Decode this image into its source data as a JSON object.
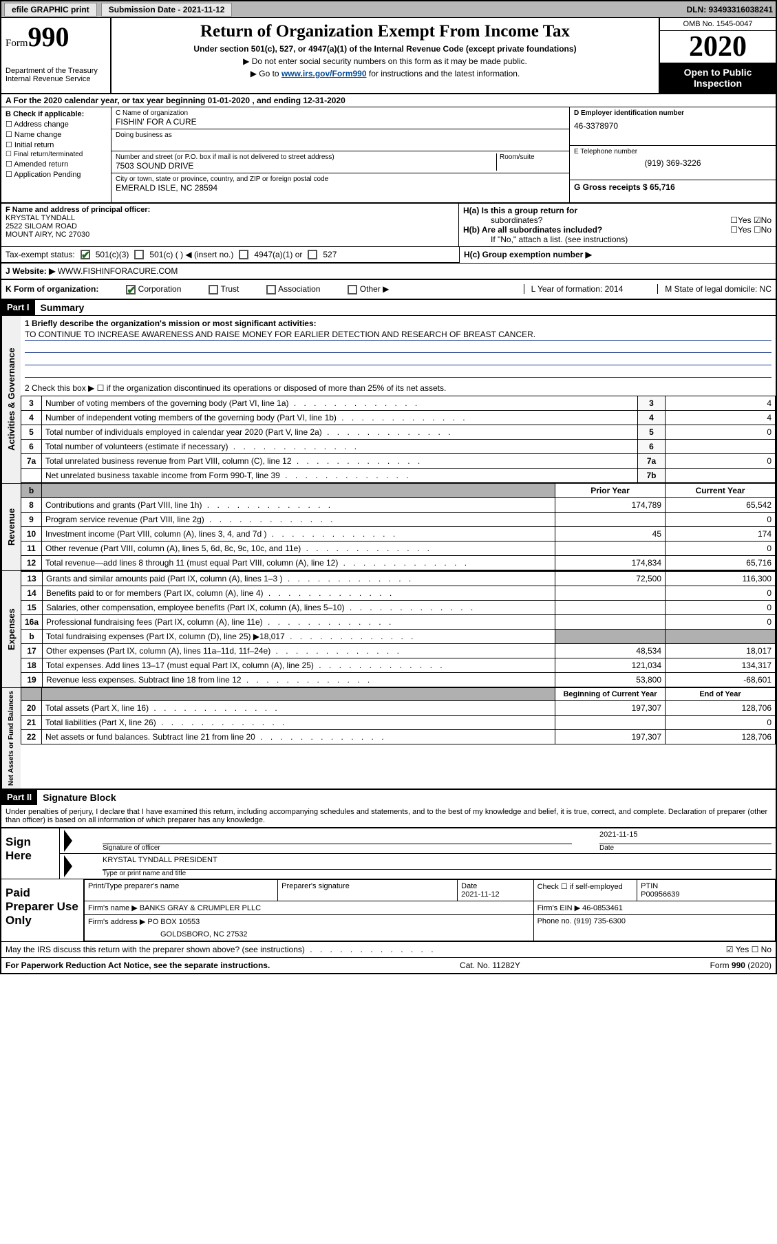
{
  "topbar": {
    "efile": "efile GRAPHIC print",
    "subdate_lbl": "Submission Date - 2021-11-12",
    "dln_lbl": "DLN: 93493316038241"
  },
  "header": {
    "form_word": "Form",
    "form_num": "990",
    "dept": "Department of the Treasury\nInternal Revenue Service",
    "title": "Return of Organization Exempt From Income Tax",
    "sub": "Under section 501(c), 527, or 4947(a)(1) of the Internal Revenue Code (except private foundations)",
    "note1": "▶ Do not enter social security numbers on this form as it may be made public.",
    "note2_pre": "▶ Go to ",
    "note2_link": "www.irs.gov/Form990",
    "note2_post": " for instructions and the latest information.",
    "omb": "OMB No. 1545-0047",
    "year": "2020",
    "open": "Open to Public Inspection"
  },
  "rowA": {
    "text": "A  For the 2020 calendar year, or tax year beginning 01-01-2020   , and ending 12-31-2020"
  },
  "colB": {
    "lbl": "B Check if applicable:",
    "opts": [
      "☐ Address change",
      "☐ Name change",
      "☐ Initial return",
      "☐ Final return/terminated",
      "☐ Amended return",
      "☐ Application Pending"
    ]
  },
  "colC": {
    "name_lbl": "C Name of organization",
    "name": "FISHIN' FOR A CURE",
    "dba_lbl": "Doing business as",
    "addr_lbl": "Number and street (or P.O. box if mail is not delivered to street address)",
    "room_lbl": "Room/suite",
    "addr": "7503 SOUND DRIVE",
    "city_lbl": "City or town, state or province, country, and ZIP or foreign postal code",
    "city": "EMERALD ISLE, NC  28594"
  },
  "colD": {
    "ein_lbl": "D Employer identification number",
    "ein": "46-3378970",
    "tel_lbl": "E Telephone number",
    "tel": "(919) 369-3226",
    "gross_lbl": "G Gross receipts $ 65,716"
  },
  "rowF": {
    "f_lbl": "F  Name and address of principal officer:",
    "f_name": "KRYSTAL TYNDALL",
    "f_addr1": "2522 SILOAM ROAD",
    "f_addr2": "MOUNT AIRY, NC  27030",
    "ha_lbl": "H(a)  Is this a group return for",
    "ha_lbl2": "subordinates?",
    "ha_yn": "☐Yes  ☑No",
    "hb_lbl": "H(b)  Are all subordinates included?",
    "hb_yn": "☐Yes  ☐No",
    "hb_note": "If \"No,\" attach a list. (see instructions)",
    "hc_lbl": "H(c)  Group exemption number ▶"
  },
  "taxStatus": {
    "lbl": "Tax-exempt status:",
    "o1": "501(c)(3)",
    "o2": "501(c) (  ) ◀ (insert no.)",
    "o3": "4947(a)(1) or",
    "o4": "527"
  },
  "rowJ": {
    "lbl": "J   Website: ▶",
    "val": "WWW.FISHINFORACURE.COM"
  },
  "rowK": {
    "lbl": "K Form of organization:",
    "corp": "Corporation",
    "trust": "Trust",
    "assoc": "Association",
    "other": "Other ▶",
    "l_lbl": "L Year of formation: 2014",
    "m_lbl": "M State of legal domicile: NC"
  },
  "part1": {
    "hdr": "Part I",
    "title": "Summary",
    "q1_lbl": "1   Briefly describe the organization's mission or most significant activities:",
    "q1_val": "TO CONTINUE TO INCREASE AWARENESS AND RAISE MONEY FOR EARLIER DETECTION AND RESEARCH OF BREAST CANCER.",
    "q2_lbl": "2   Check this box ▶ ☐  if the organization discontinued its operations or disposed of more than 25% of its net assets."
  },
  "sideLabels": {
    "gov": "Activities & Governance",
    "rev": "Revenue",
    "exp": "Expenses",
    "net": "Net Assets or Fund Balances"
  },
  "govLines": [
    {
      "n": "3",
      "t": "Number of voting members of the governing body (Part VI, line 1a)",
      "ln": "3",
      "v": "4"
    },
    {
      "n": "4",
      "t": "Number of independent voting members of the governing body (Part VI, line 1b)",
      "ln": "4",
      "v": "4"
    },
    {
      "n": "5",
      "t": "Total number of individuals employed in calendar year 2020 (Part V, line 2a)",
      "ln": "5",
      "v": "0"
    },
    {
      "n": "6",
      "t": "Total number of volunteers (estimate if necessary)",
      "ln": "6",
      "v": ""
    },
    {
      "n": "7a",
      "t": "Total unrelated business revenue from Part VIII, column (C), line 12",
      "ln": "7a",
      "v": "0"
    },
    {
      "n": "",
      "t": "Net unrelated business taxable income from Form 990-T, line 39",
      "ln": "7b",
      "v": ""
    }
  ],
  "yearHdrs": {
    "prior": "Prior Year",
    "current": "Current Year"
  },
  "revLines": [
    {
      "n": "8",
      "t": "Contributions and grants (Part VIII, line 1h)",
      "p": "174,789",
      "c": "65,542"
    },
    {
      "n": "9",
      "t": "Program service revenue (Part VIII, line 2g)",
      "p": "",
      "c": "0"
    },
    {
      "n": "10",
      "t": "Investment income (Part VIII, column (A), lines 3, 4, and 7d )",
      "p": "45",
      "c": "174"
    },
    {
      "n": "11",
      "t": "Other revenue (Part VIII, column (A), lines 5, 6d, 8c, 9c, 10c, and 11e)",
      "p": "",
      "c": "0"
    },
    {
      "n": "12",
      "t": "Total revenue—add lines 8 through 11 (must equal Part VIII, column (A), line 12)",
      "p": "174,834",
      "c": "65,716"
    }
  ],
  "expLines": [
    {
      "n": "13",
      "t": "Grants and similar amounts paid (Part IX, column (A), lines 1–3 )",
      "p": "72,500",
      "c": "116,300"
    },
    {
      "n": "14",
      "t": "Benefits paid to or for members (Part IX, column (A), line 4)",
      "p": "",
      "c": "0"
    },
    {
      "n": "15",
      "t": "Salaries, other compensation, employee benefits (Part IX, column (A), lines 5–10)",
      "p": "",
      "c": "0"
    },
    {
      "n": "16a",
      "t": "Professional fundraising fees (Part IX, column (A), line 11e)",
      "p": "",
      "c": "0"
    },
    {
      "n": "b",
      "t": "Total fundraising expenses (Part IX, column (D), line 25) ▶18,017",
      "p": "DARK",
      "c": "DARK"
    },
    {
      "n": "17",
      "t": "Other expenses (Part IX, column (A), lines 11a–11d, 11f–24e)",
      "p": "48,534",
      "c": "18,017"
    },
    {
      "n": "18",
      "t": "Total expenses. Add lines 13–17 (must equal Part IX, column (A), line 25)",
      "p": "121,034",
      "c": "134,317"
    },
    {
      "n": "19",
      "t": "Revenue less expenses. Subtract line 18 from line 12",
      "p": "53,800",
      "c": "-68,601"
    }
  ],
  "netHdrs": {
    "begin": "Beginning of Current Year",
    "end": "End of Year"
  },
  "netLines": [
    {
      "n": "20",
      "t": "Total assets (Part X, line 16)",
      "p": "197,307",
      "c": "128,706"
    },
    {
      "n": "21",
      "t": "Total liabilities (Part X, line 26)",
      "p": "",
      "c": "0"
    },
    {
      "n": "22",
      "t": "Net assets or fund balances. Subtract line 21 from line 20",
      "p": "197,307",
      "c": "128,706"
    }
  ],
  "part2": {
    "hdr": "Part II",
    "title": "Signature Block",
    "decl": "Under penalties of perjury, I declare that I have examined this return, including accompanying schedules and statements, and to the best of my knowledge and belief, it is true, correct, and complete. Declaration of preparer (other than officer) is based on all information of which preparer has any knowledge."
  },
  "sign": {
    "side": "Sign Here",
    "sig_lbl": "Signature of officer",
    "date_lbl": "Date",
    "date_val": "2021-11-15",
    "name_val": "KRYSTAL TYNDALL  PRESIDENT",
    "name_lbl": "Type or print name and title"
  },
  "prep": {
    "side": "Paid Preparer Use Only",
    "h1": "Print/Type preparer's name",
    "h2": "Preparer's signature",
    "h3_lbl": "Date",
    "h3_val": "2021-11-12",
    "h4_lbl": "Check ☐  if self-employed",
    "h5_lbl": "PTIN",
    "h5_val": "P00956639",
    "firm_lbl": "Firm's name    ▶",
    "firm_val": "BANKS GRAY & CRUMPLER PLLC",
    "ein_lbl": "Firm's EIN ▶ 46-0853461",
    "addr_lbl": "Firm's address ▶",
    "addr_val": "PO BOX 10553",
    "addr_val2": "GOLDSBORO, NC  27532",
    "phone_lbl": "Phone no. (919) 735-6300",
    "discuss": "May the IRS discuss this return with the preparer shown above? (see instructions)",
    "discuss_yn": "☑ Yes   ☐ No"
  },
  "footer": {
    "left": "For Paperwork Reduction Act Notice, see the separate instructions.",
    "mid": "Cat. No. 11282Y",
    "right": "Form 990 (2020)"
  },
  "colors": {
    "link": "#004b9b",
    "check": "#1a6a1a",
    "topbar_bg": "#b8b8b8",
    "darkfill": "#b0b0b0"
  }
}
